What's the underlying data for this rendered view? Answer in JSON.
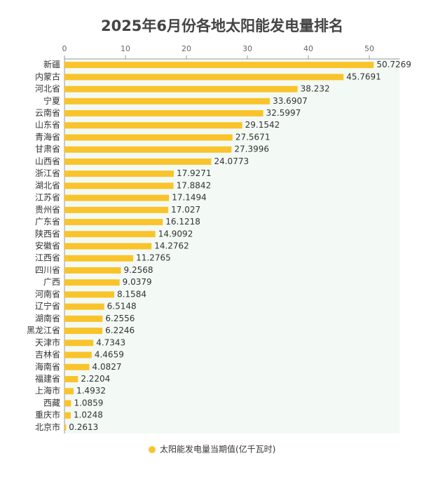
{
  "chart_data": {
    "type": "hbar",
    "title": "2025年6月份各地太阳能发电量排名",
    "categories": [
      "新疆",
      "内蒙古",
      "河北省",
      "宁夏",
      "云南省",
      "山东省",
      "青海省",
      "甘肃省",
      "山西省",
      "浙江省",
      "湖北省",
      "江苏省",
      "贵州省",
      "广东省",
      "陕西省",
      "安徽省",
      "江西省",
      "四川省",
      "广西",
      "河南省",
      "辽宁省",
      "湖南省",
      "黑龙江省",
      "天津市",
      "吉林省",
      "海南省",
      "福建省",
      "上海市",
      "西藏",
      "重庆市",
      "北京市"
    ],
    "series": [
      {
        "name": "太阳能发电量当期值(亿千瓦时)",
        "color": "#f9c42b",
        "values": [
          50.7269,
          45.7691,
          38.232,
          33.6907,
          32.5997,
          29.1542,
          27.5671,
          27.3996,
          24.0773,
          17.9271,
          17.8842,
          17.1494,
          17.027,
          16.1218,
          14.9092,
          14.2762,
          11.2765,
          9.2568,
          9.0379,
          8.1584,
          6.5148,
          6.2556,
          6.2246,
          4.7343,
          4.4659,
          4.0827,
          2.2204,
          1.4932,
          1.0859,
          1.0248,
          0.2613
        ]
      }
    ],
    "xlim": [
      0,
      55
    ],
    "xticks": [
      0,
      10,
      20,
      30,
      40,
      50
    ],
    "legend": "bottom"
  }
}
